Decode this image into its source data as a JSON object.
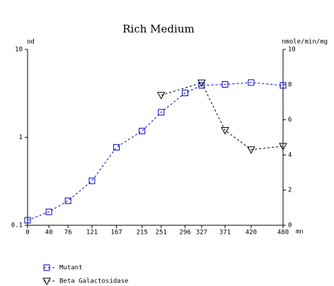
{
  "chart_data": {
    "type": "line",
    "title": "Rich Medium",
    "y_label": "od",
    "y2_label": "nmole/min/mg",
    "x_label": "mn",
    "xlim": [
      0,
      480
    ],
    "xticks": [
      0,
      40,
      76,
      121,
      167,
      215,
      251,
      296,
      327,
      371,
      420,
      480
    ],
    "ylim": [
      0.1,
      10
    ],
    "yticks": [
      0.1,
      1,
      10
    ],
    "y_scale": "log",
    "y2lim": [
      0,
      10
    ],
    "y2ticks": [
      0,
      2,
      4,
      6,
      8,
      10
    ],
    "grid": false,
    "legend": "bottom-left",
    "series": [
      {
        "name": "Mutant",
        "color": "#0000cc",
        "marker": "square",
        "x": [
          0,
          40,
          76,
          121,
          167,
          215,
          251,
          296,
          327,
          371,
          420,
          480
        ],
        "values": [
          0.114,
          0.142,
          0.19,
          0.32,
          0.77,
          1.18,
          1.93,
          3.2,
          3.9,
          4.0,
          4.2,
          3.9
        ]
      },
      {
        "name": "Beta Galactosidase",
        "color": "#000000",
        "marker": "triangle",
        "axis": "y2",
        "x": [
          251,
          327,
          371,
          420,
          480
        ],
        "values": [
          7.4,
          8.1,
          5.4,
          4.3,
          4.5
        ]
      }
    ]
  }
}
